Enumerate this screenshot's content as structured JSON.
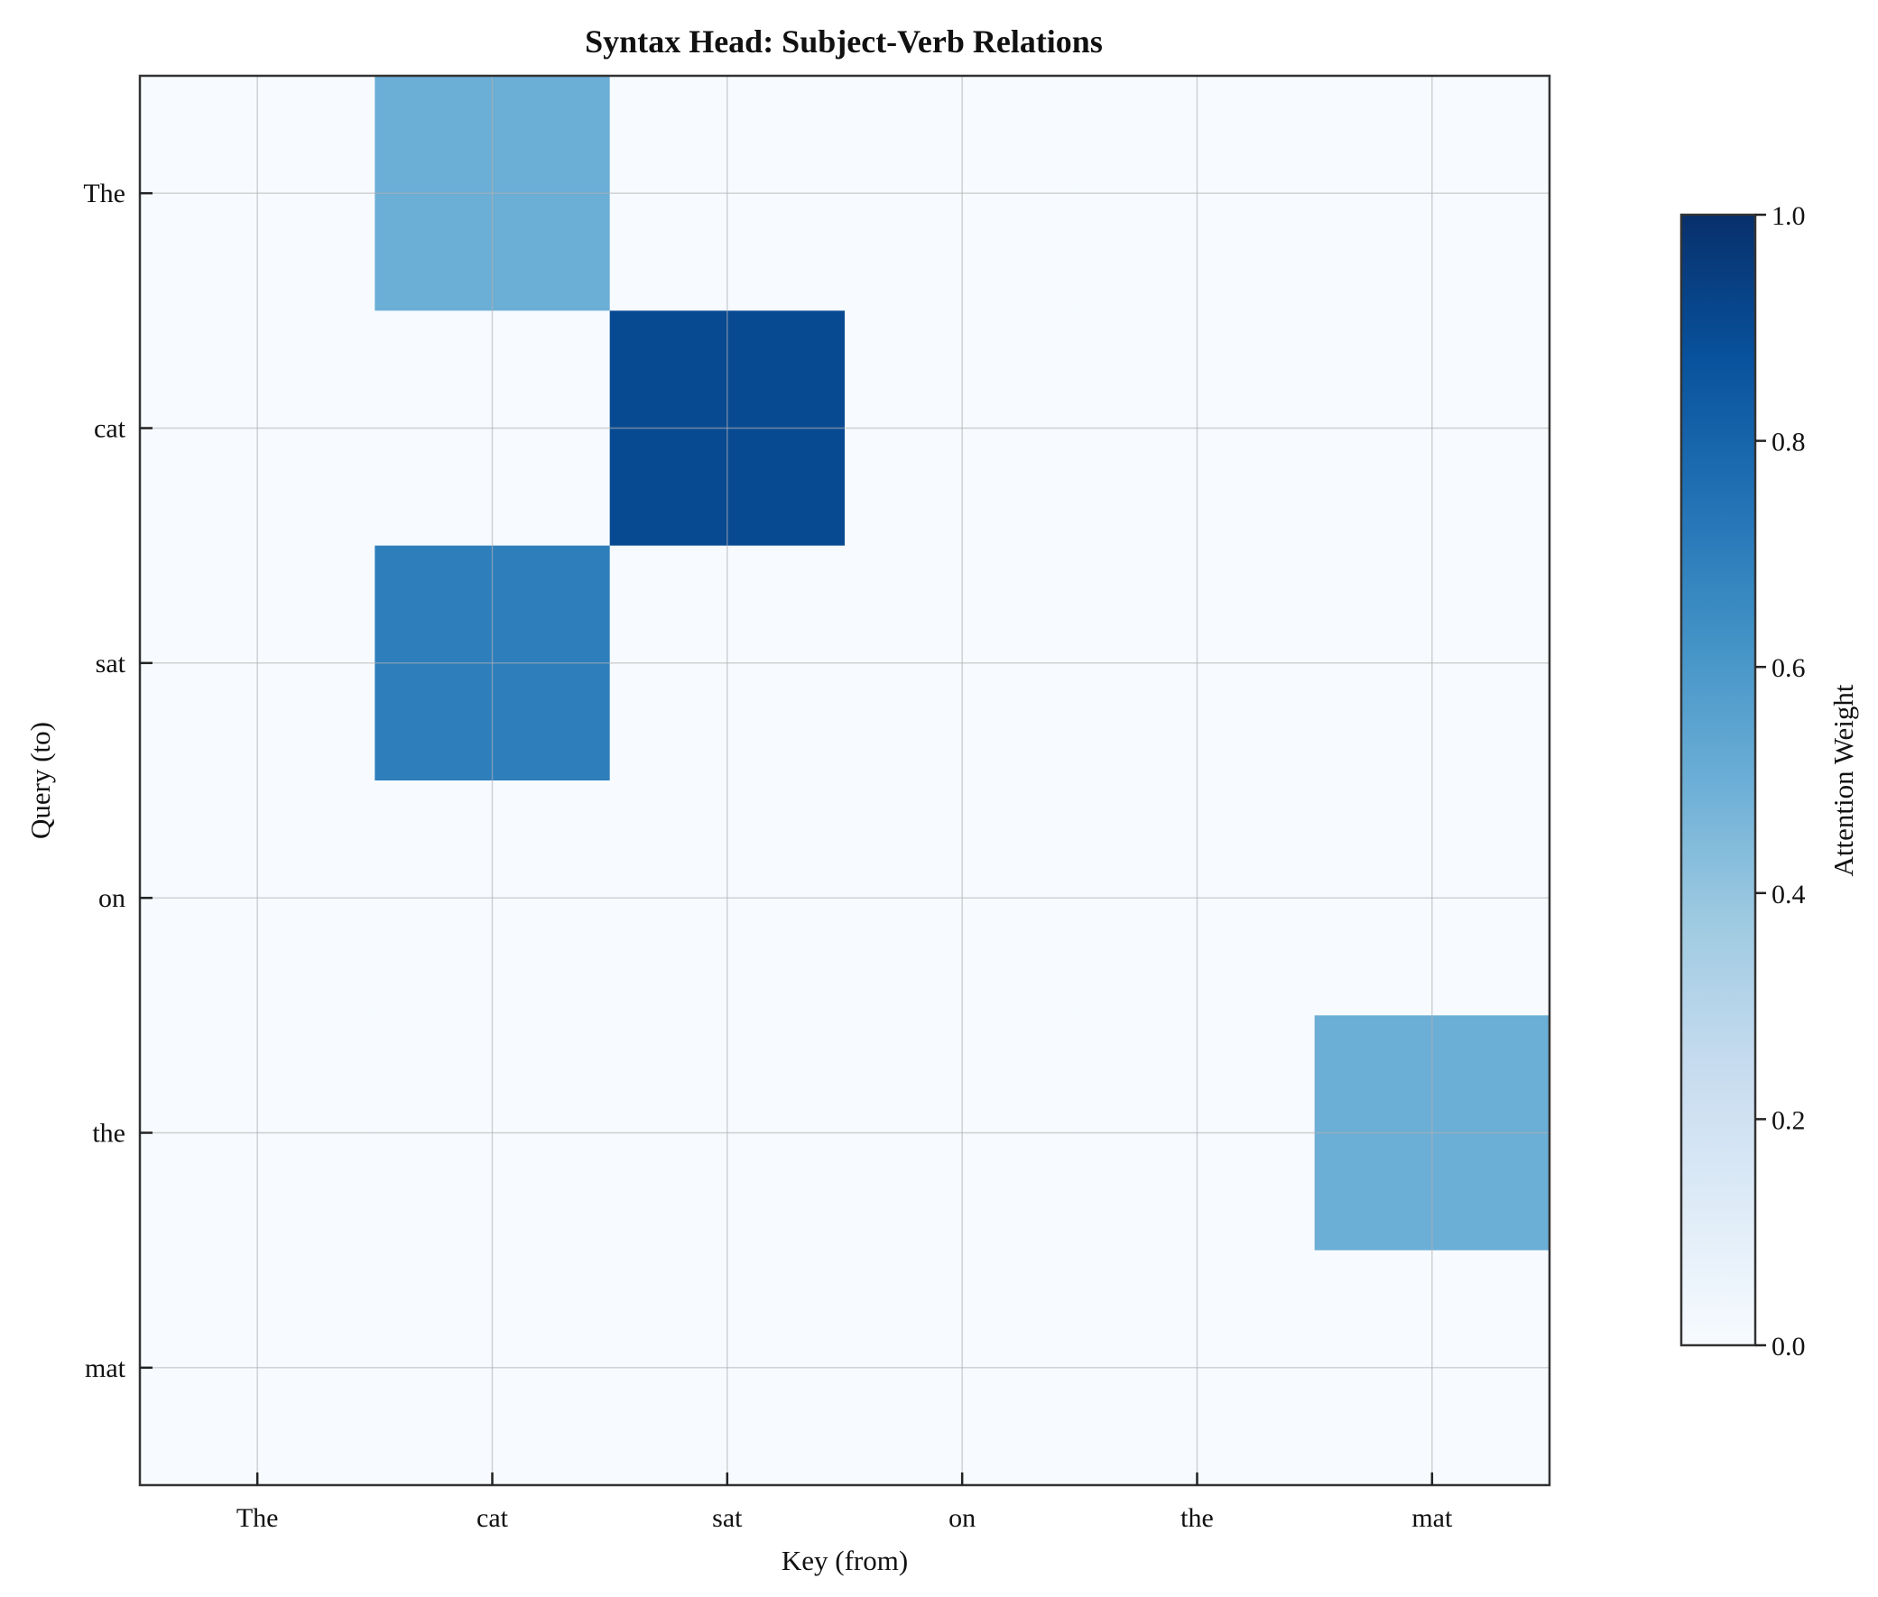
{
  "chart_data": {
    "type": "heatmap",
    "title": "Syntax Head: Subject-Verb Relations",
    "xlabel": "Key (from)",
    "ylabel": "Query (to)",
    "x_categories": [
      "The",
      "cat",
      "sat",
      "on",
      "the",
      "mat"
    ],
    "y_categories": [
      "The",
      "cat",
      "sat",
      "on",
      "the",
      "mat"
    ],
    "values": [
      [
        0.0,
        0.5,
        0.0,
        0.0,
        0.0,
        0.0
      ],
      [
        0.0,
        0.0,
        0.9,
        0.0,
        0.0,
        0.0
      ],
      [
        0.0,
        0.7,
        0.0,
        0.0,
        0.0,
        0.0
      ],
      [
        0.0,
        0.0,
        0.0,
        0.0,
        0.0,
        0.0
      ],
      [
        0.0,
        0.0,
        0.0,
        0.0,
        0.0,
        0.5
      ],
      [
        0.0,
        0.0,
        0.0,
        0.0,
        0.0,
        0.0
      ]
    ],
    "colormap": "Blues",
    "colorbar": {
      "label": "Attention Weight",
      "range": [
        0.0,
        1.0
      ],
      "ticks": [
        "0.0",
        "0.2",
        "0.4",
        "0.6",
        "0.8",
        "1.0"
      ]
    },
    "grid": true
  }
}
